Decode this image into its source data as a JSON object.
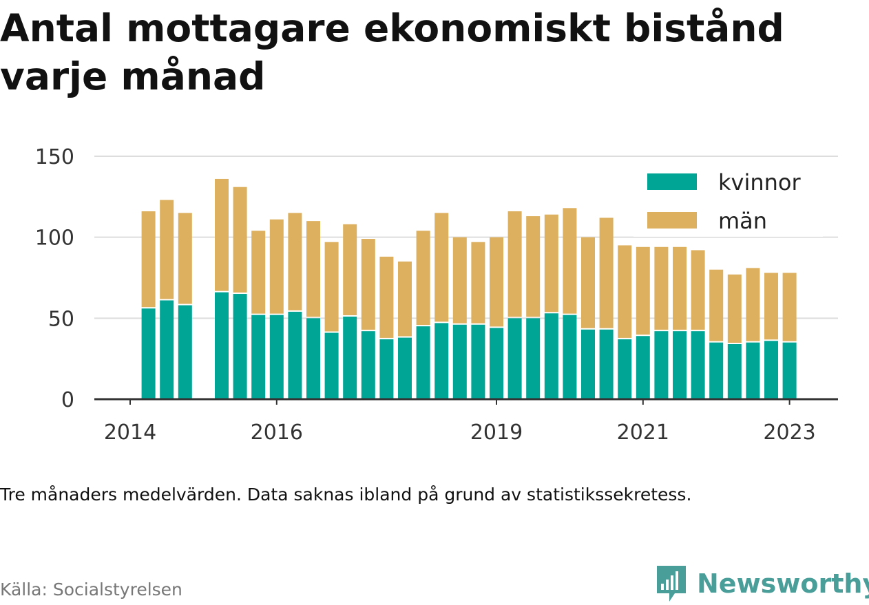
{
  "title": "Antal mottagare ekonomiskt bistånd varje månad",
  "note": "Tre månaders medelvärden. Data saknas ibland på grund av statistikssekretess.",
  "source": "Källa: Socialstyrelsen",
  "brand": "Newsworthy",
  "colors": {
    "kvinnor": "#00a596",
    "man": "#ddb05f",
    "grid": "#dddddd",
    "axis": "#333333",
    "brand": "#4a9e9a"
  },
  "chart_data": {
    "type": "bar",
    "stacked": true,
    "xlabel": "",
    "ylabel": "",
    "ylim": [
      0,
      150
    ],
    "yticks": [
      0,
      50,
      100,
      150
    ],
    "x_ticks": [
      "2014",
      "2016",
      "2019",
      "2021",
      "2023"
    ],
    "grid": true,
    "legend_position": "top-right",
    "slots": 37,
    "x_tick_slots": [
      0,
      8,
      20,
      28,
      36
    ],
    "series": [
      {
        "name": "kvinnor",
        "values": [
          null,
          56,
          61,
          58,
          null,
          66,
          65,
          52,
          52,
          54,
          50,
          41,
          51,
          42,
          37,
          38,
          45,
          47,
          46,
          46,
          44,
          50,
          50,
          53,
          52,
          43,
          43,
          37,
          39,
          42,
          42,
          42,
          35,
          34,
          35,
          36,
          35
        ]
      },
      {
        "name": "män",
        "values": [
          null,
          60,
          62,
          57,
          null,
          70,
          66,
          52,
          59,
          61,
          60,
          56,
          57,
          57,
          51,
          47,
          59,
          68,
          54,
          51,
          56,
          66,
          63,
          61,
          66,
          57,
          69,
          58,
          55,
          52,
          52,
          50,
          45,
          43,
          46,
          42,
          43
        ]
      }
    ]
  }
}
